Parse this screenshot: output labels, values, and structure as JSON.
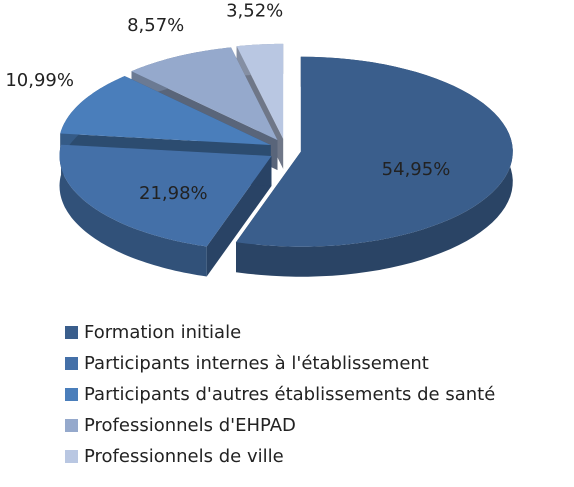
{
  "chart_data": {
    "type": "pie",
    "categories": [
      "Formation initiale",
      "Participants internes à l'établissement",
      "Participants d'autres établissements de santé",
      "Professionnels d'EHPAD",
      "Professionnels de ville"
    ],
    "values": [
      54.95,
      21.98,
      10.99,
      8.57,
      3.52
    ],
    "value_labels": [
      "54,95%",
      "21,98%",
      "10,99%",
      "8,57%",
      "3,52%"
    ],
    "colors": [
      "#3a5e8c",
      "#4470a8",
      "#4a7ebb",
      "#95a9cc",
      "#b9c7e2"
    ]
  }
}
